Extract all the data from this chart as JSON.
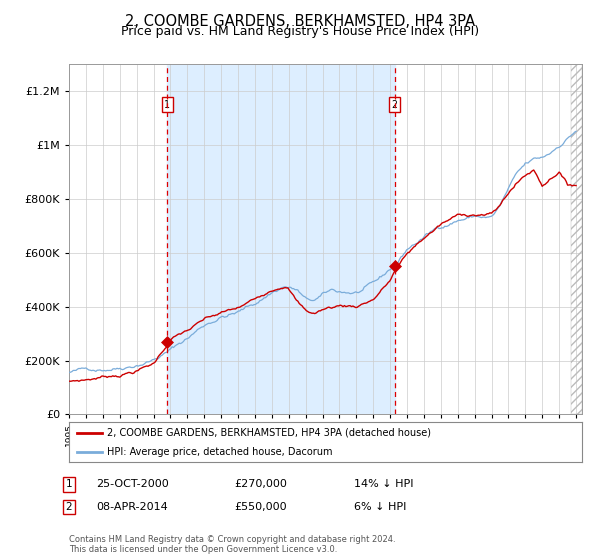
{
  "title": "2, COOMBE GARDENS, BERKHAMSTED, HP4 3PA",
  "subtitle": "Price paid vs. HM Land Registry's House Price Index (HPI)",
  "title_fontsize": 10.5,
  "subtitle_fontsize": 9,
  "ylim": [
    0,
    1300000
  ],
  "yticks": [
    0,
    200000,
    400000,
    600000,
    800000,
    1000000,
    1200000
  ],
  "ytick_labels": [
    "£0",
    "£200K",
    "£400K",
    "£600K",
    "£800K",
    "£1M",
    "£1.2M"
  ],
  "year_start": 1995,
  "year_end": 2025,
  "red_line_color": "#cc0000",
  "blue_line_color": "#7aacda",
  "background_color": "#ffffff",
  "plot_bg_color": "#ddeeff",
  "vline_color": "#dd0000",
  "transaction1_year": 2000.81,
  "transaction1_value": 270000,
  "transaction1_label": "1",
  "transaction1_date": "25-OCT-2000",
  "transaction1_price": "£270,000",
  "transaction1_hpi": "14% ↓ HPI",
  "transaction2_year": 2014.27,
  "transaction2_value": 550000,
  "transaction2_label": "2",
  "transaction2_date": "08-APR-2014",
  "transaction2_price": "£550,000",
  "transaction2_hpi": "6% ↓ HPI",
  "legend_label_red": "2, COOMBE GARDENS, BERKHAMSTED, HP4 3PA (detached house)",
  "legend_label_blue": "HPI: Average price, detached house, Dacorum",
  "footnote": "Contains HM Land Registry data © Crown copyright and database right 2024.\nThis data is licensed under the Open Government Licence v3.0."
}
